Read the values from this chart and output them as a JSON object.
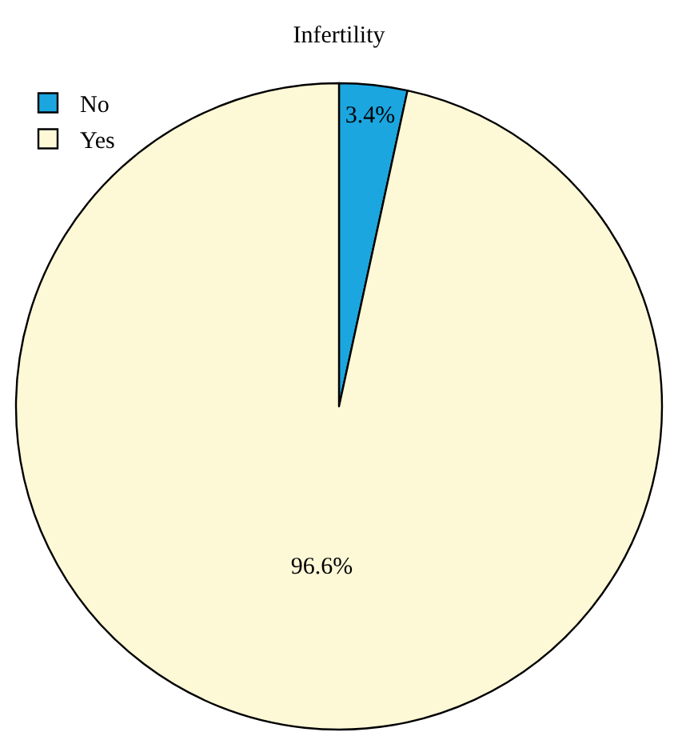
{
  "chart_data": {
    "type": "pie",
    "title": "Infertility",
    "categories": [
      "No",
      "Yes"
    ],
    "values": [
      3.4,
      96.6
    ],
    "colors": [
      "#1ba6e0",
      "#fdf8d6"
    ],
    "value_labels": [
      "3.4%",
      "96.6%"
    ],
    "legend": "top left"
  }
}
